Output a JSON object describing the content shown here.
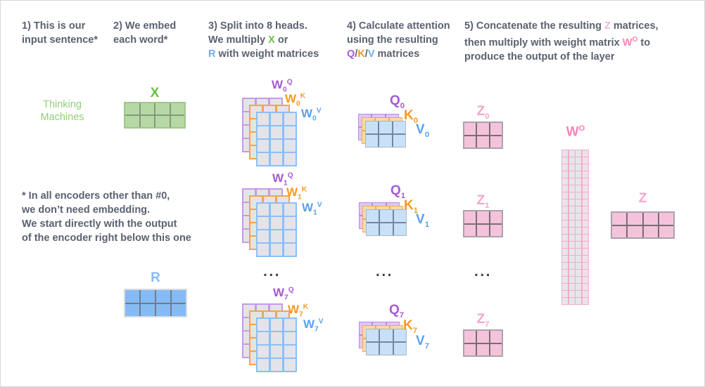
{
  "palette": {
    "green": "#6cbf47",
    "green_light": "#90cf7a",
    "blue": "#70acf3",
    "purple": "#a55ad8",
    "orange": "#f5991f",
    "pink": "#f287b8",
    "pink_light": "#f8b3d4",
    "text": "#5a6170"
  },
  "steps": [
    {
      "lines": [
        [
          {
            "t": "1) This is our"
          }
        ],
        [
          {
            "t": "input sentence*"
          }
        ]
      ]
    },
    {
      "lines": [
        [
          {
            "t": "2) We embed"
          }
        ],
        [
          {
            "t": "each word*"
          }
        ]
      ]
    },
    {
      "lines": [
        [
          {
            "t": "3) Split into 8 heads."
          }
        ],
        [
          {
            "t": "We multiply "
          },
          {
            "t": "X",
            "c": "green"
          },
          {
            "t": " or"
          }
        ],
        [
          {
            "t": "R",
            "c": "blue"
          },
          {
            "t": " with weight matrices"
          }
        ]
      ]
    },
    {
      "lines": [
        [
          {
            "t": "4) Calculate attention"
          }
        ],
        [
          {
            "t": "using the resulting"
          }
        ],
        [
          {
            "t": "Q",
            "c": "purple"
          },
          {
            "t": "/"
          },
          {
            "t": "K",
            "c": "orange"
          },
          {
            "t": "/"
          },
          {
            "t": "V",
            "c": "blue"
          },
          {
            "t": " matrices"
          }
        ]
      ]
    },
    {
      "lines": [
        [
          {
            "t": "5) Concatenate the resulting "
          },
          {
            "t": "Z",
            "c": "pink"
          },
          {
            "t": " matrices,"
          }
        ],
        [
          {
            "t": "then multiply with weight matrix "
          },
          {
            "t": "W",
            "c": "pinkdeep"
          },
          {
            "t": "O",
            "c": "pinkdeep",
            "sup": true
          },
          {
            "t": " to"
          }
        ],
        [
          {
            "t": "produce the output of the layer"
          }
        ]
      ]
    }
  ],
  "input_words": {
    "line1": "Thinking",
    "line2": "Machines"
  },
  "footnote": {
    "lines": [
      "* In all encoders other than #0,",
      "we don’t need embedding.",
      "We start directly with the output",
      "of the encoder right below this one"
    ]
  },
  "labels": {
    "x": "X",
    "r": "R",
    "z_final": "Z",
    "wo": {
      "base": "W",
      "sup": "O"
    },
    "ellipsis": "..."
  },
  "w_stacks": [
    {
      "labels": [
        {
          "base": "W",
          "sub": "0",
          "sup": "Q"
        },
        {
          "base": "W",
          "sub": "0",
          "sup": "K"
        },
        {
          "base": "W",
          "sub": "0",
          "sup": "V"
        }
      ]
    },
    {
      "labels": [
        {
          "base": "W",
          "sub": "1",
          "sup": "Q"
        },
        {
          "base": "W",
          "sub": "1",
          "sup": "K"
        },
        {
          "base": "W",
          "sub": "1",
          "sup": "V"
        }
      ]
    },
    {
      "labels": [
        {
          "base": "W",
          "sub": "7",
          "sup": "Q"
        },
        {
          "base": "W",
          "sub": "7",
          "sup": "K"
        },
        {
          "base": "W",
          "sub": "7",
          "sup": "V"
        }
      ]
    }
  ],
  "qkv_stacks": [
    {
      "labels": [
        {
          "base": "Q",
          "sub": "0"
        },
        {
          "base": "K",
          "sub": "0"
        },
        {
          "base": "V",
          "sub": "0"
        }
      ]
    },
    {
      "labels": [
        {
          "base": "Q",
          "sub": "1"
        },
        {
          "base": "K",
          "sub": "1"
        },
        {
          "base": "V",
          "sub": "1"
        }
      ]
    },
    {
      "labels": [
        {
          "base": "Q",
          "sub": "7"
        },
        {
          "base": "K",
          "sub": "7"
        },
        {
          "base": "V",
          "sub": "7"
        }
      ]
    }
  ],
  "z_labels": [
    {
      "base": "Z",
      "sub": "0"
    },
    {
      "base": "Z",
      "sub": "1"
    },
    {
      "base": "Z",
      "sub": "7"
    }
  ],
  "matrices": {
    "x": {
      "rows": 2,
      "cols": 4
    },
    "r": {
      "rows": 2,
      "cols": 4
    },
    "w": {
      "rows": 4,
      "cols": 3
    },
    "qkv": {
      "rows": 2,
      "cols": 3
    },
    "z": {
      "rows": 2,
      "cols": 3
    },
    "z_final": {
      "rows": 2,
      "cols": 4
    },
    "wo": {
      "rows": 22,
      "cols": 4
    }
  }
}
